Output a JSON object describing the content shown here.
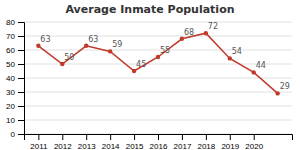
{
  "chart_data": {
    "type": "line",
    "title": "Average Inmate Population",
    "categories": [
      "2011",
      "2012",
      "2013",
      "2014",
      "2015",
      "2016",
      "2017",
      "2018",
      "2019",
      "2020",
      null
    ],
    "values": [
      63,
      50,
      63,
      59,
      45,
      55,
      68,
      72,
      54,
      44,
      29
    ],
    "color": "#c0392b",
    "ylim": [
      0,
      80
    ],
    "yticks": [
      0,
      10,
      20,
      30,
      40,
      50,
      60,
      70,
      80
    ],
    "grid": true,
    "data_labels": true,
    "marker": "circle"
  }
}
